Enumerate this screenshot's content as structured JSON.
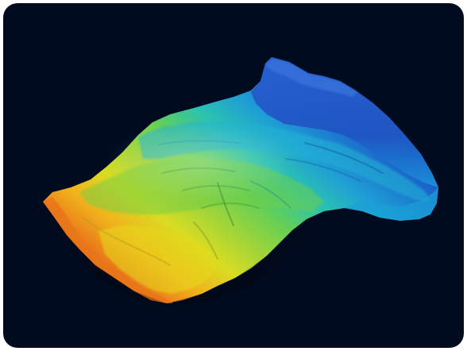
{
  "scene": {
    "subject": "3d-terrain-surface",
    "background_color": "#010b1f",
    "frame_color": "#ffffff",
    "colormap": [
      "#1e3fa8",
      "#1a6fd0",
      "#12a6d8",
      "#2cc7a0",
      "#7fd33a",
      "#c6dc1f",
      "#f0d81a",
      "#f3a11c",
      "#e5661a",
      "#c8421a"
    ]
  }
}
